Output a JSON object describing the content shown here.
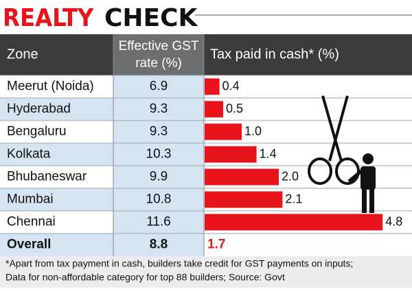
{
  "chart_data": {
    "type": "table-bar",
    "title_parts": [
      "REALTY",
      "CHECK"
    ],
    "headers": {
      "zone": "Zone",
      "gst": [
        "Effective GST",
        "rate (%)"
      ],
      "tax": "Tax paid in cash* (%)"
    },
    "categories": [
      "Meerut (Noida)",
      "Hyderabad",
      "Bengaluru",
      "Kolkata",
      "Bhubaneswar",
      "Mumbai",
      "Chennai"
    ],
    "gst_rates": [
      6.9,
      9.3,
      9.3,
      10.3,
      9.9,
      10.8,
      11.6
    ],
    "values": [
      0.4,
      0.5,
      1.0,
      1.4,
      2.0,
      2.1,
      4.8
    ],
    "value_labels": [
      "0.4",
      "0.5",
      "1.0",
      "1.4",
      "2.0",
      "2.1",
      "4.8"
    ],
    "color": "#e8141b",
    "overall": {
      "label": "Overall",
      "gst_rate": 8.8,
      "tax": 1.7
    },
    "footnote": [
      "*Apart from tax payment in cash, builders take credit for GST payments on inputs;",
      "Data for non-affordable category for top 88 builders; Source: Govt"
    ]
  }
}
